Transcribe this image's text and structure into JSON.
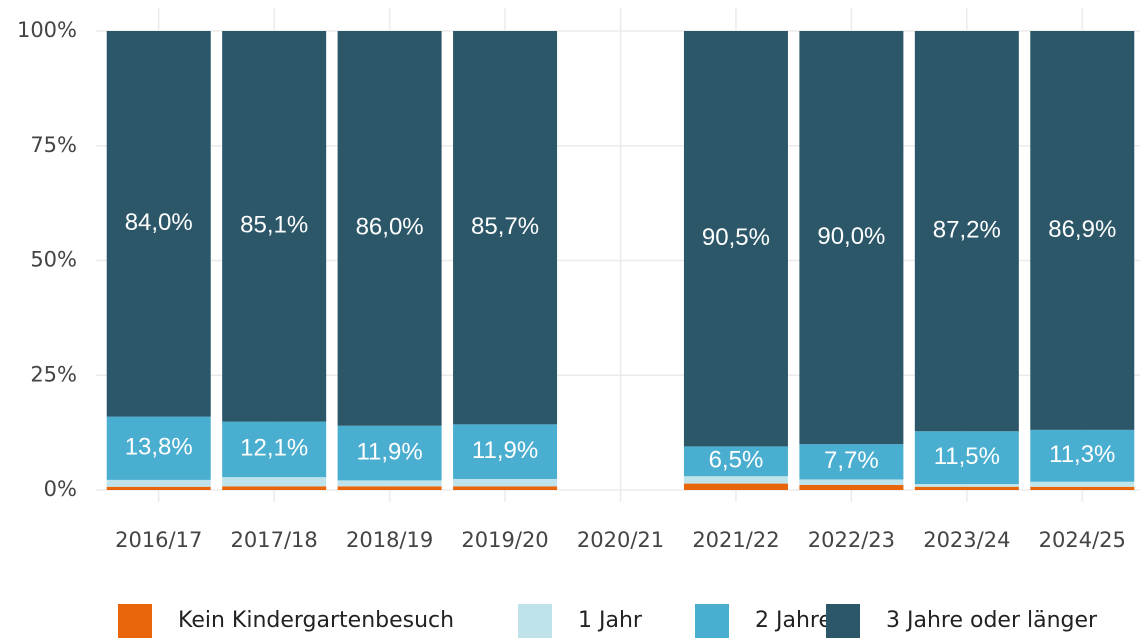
{
  "chart_data": {
    "type": "stacked_bar",
    "categories": [
      "2016/17",
      "2017/18",
      "2018/19",
      "2019/20",
      "2020/21",
      "2021/22",
      "2022/23",
      "2023/24",
      "2024/25"
    ],
    "series": [
      {
        "name": "Kein Kindergartenbesuch",
        "color": "#e8650a",
        "values": [
          0.7,
          0.8,
          0.8,
          0.8,
          null,
          1.4,
          1.1,
          0.7,
          0.7
        ]
      },
      {
        "name": "1 Jahr",
        "color": "#bfe3eb",
        "values": [
          1.5,
          2.0,
          1.3,
          1.6,
          null,
          1.6,
          1.2,
          0.6,
          1.1
        ]
      },
      {
        "name": "2 Jahre",
        "color": "#4aaed0",
        "values": [
          13.8,
          12.1,
          11.9,
          11.9,
          null,
          6.5,
          7.7,
          11.5,
          11.3
        ],
        "value_labels": [
          "13,8%",
          "12,1%",
          "11,9%",
          "11,9%",
          null,
          "6,5%",
          "7,7%",
          "11,5%",
          "11,3%"
        ]
      },
      {
        "name": "3 Jahre oder länger",
        "color": "#2c5769",
        "values": [
          84.0,
          85.1,
          86.0,
          85.7,
          null,
          90.5,
          90.0,
          87.2,
          86.9
        ],
        "value_labels": [
          "84,0%",
          "85,1%",
          "86,0%",
          "85,7%",
          null,
          "90,5%",
          "90,0%",
          "87,2%",
          "86,9%"
        ]
      }
    ],
    "ylim": [
      0,
      100
    ],
    "yticks": [
      {
        "value": 0,
        "label": "0%"
      },
      {
        "value": 25,
        "label": "25%"
      },
      {
        "value": 50,
        "label": "50%"
      },
      {
        "value": 75,
        "label": "75%"
      },
      {
        "value": 100,
        "label": "100%"
      }
    ],
    "grid": true,
    "legend": "bottom"
  }
}
